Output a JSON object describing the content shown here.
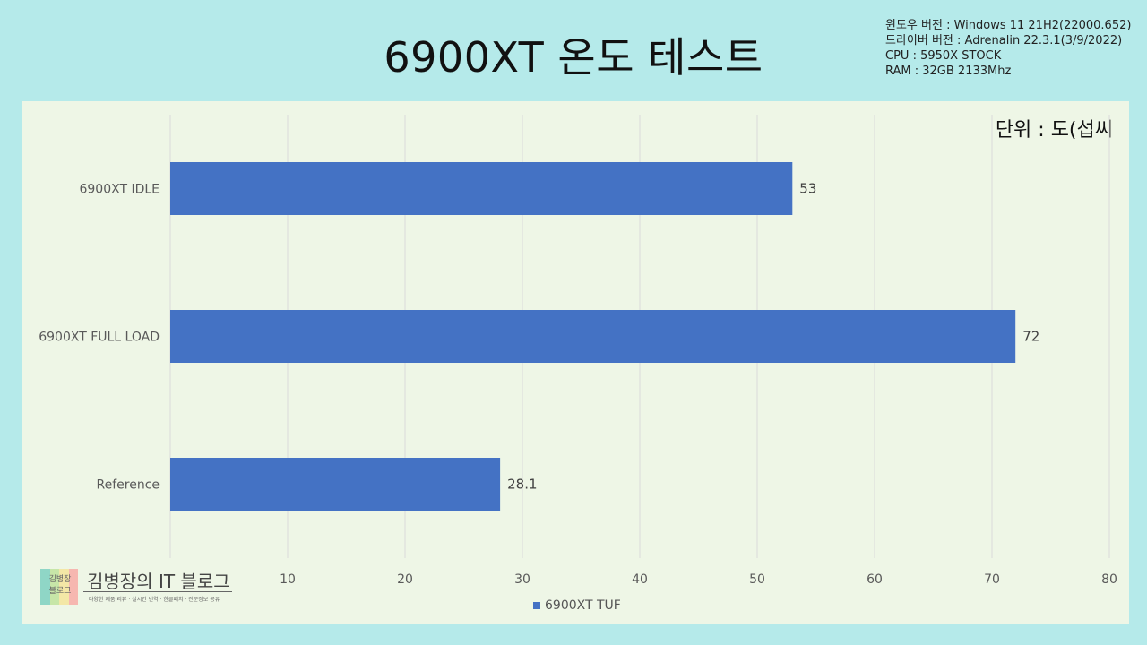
{
  "title": "6900XT 온도 테스트",
  "specs": [
    "윈도우 버전 : Windows 11 21H2(22000.652)",
    "드라이버 버전 : Adrenalin 22.3.1(3/9/2022)",
    "CPU : 5950X STOCK",
    "RAM : 32GB 2133Mhz"
  ],
  "unit_label": "단위 : 도(섭씨",
  "logo": {
    "mark": "김병장\n블로그",
    "name": "김병장의 IT 블로그",
    "tagline": "다양한 제품 리뷰 · 실시간 번역 · 한글패치 · 전문정보 공유"
  },
  "colors": {
    "bar": "#4472c4",
    "background": "#b5eaea",
    "panel": "#eef6e6"
  },
  "chart_data": {
    "type": "bar",
    "orientation": "horizontal",
    "categories": [
      "6900XT IDLE",
      "6900XT FULL LOAD",
      "Reference"
    ],
    "series": [
      {
        "name": "6900XT TUF",
        "values": [
          53,
          72,
          28.1
        ]
      }
    ],
    "data_labels": [
      "53",
      "72",
      "28.1"
    ],
    "xlim": [
      0,
      80
    ],
    "x_ticks": [
      10,
      20,
      30,
      40,
      50,
      60,
      70,
      80
    ],
    "grid": "vertical",
    "legend": "bottom"
  }
}
